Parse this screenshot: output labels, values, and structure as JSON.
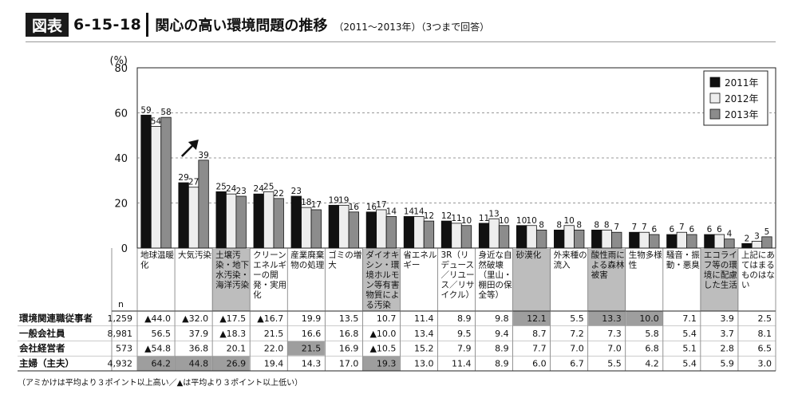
{
  "header": {
    "badge": "図表",
    "number": "6-15-18",
    "title": "関心の高い環境問題の推移",
    "subtitle": "（2011～2013年）（3つまで回答）"
  },
  "chart_data": {
    "type": "bar",
    "title": "関心の高い環境問題の推移",
    "ylabel": "(%)",
    "ylim": [
      0,
      80
    ],
    "yticks": [
      0,
      20,
      40,
      60,
      80
    ],
    "grid": "dashed-horizontal",
    "legend_position": "top-right",
    "categories": [
      [
        "地球温暖",
        "化"
      ],
      [
        "大気汚染"
      ],
      [
        "土壌汚",
        "染・地下",
        "水汚染・",
        "海洋汚染"
      ],
      [
        "クリーン",
        "エネルギ",
        "ーの開",
        "発・実用",
        "化"
      ],
      [
        "産業廃棄",
        "物の処理"
      ],
      [
        "ゴミの増",
        "大"
      ],
      [
        "ダイオキ",
        "シン・環",
        "境ホルモ",
        "ン等有害",
        "物質によ",
        "る汚染"
      ],
      [
        "省エネル",
        "ギー"
      ],
      [
        "3R（リ",
        "デュース",
        "／リユー",
        "ス／リサ",
        "イクル）"
      ],
      [
        "身近な自",
        "然破壊",
        "（里山・",
        "棚田の保",
        "全等）"
      ],
      [
        "砂漠化"
      ],
      [
        "外来種の",
        "流入"
      ],
      [
        "酸性雨に",
        "よる森林",
        "被害"
      ],
      [
        "生物多様",
        "性"
      ],
      [
        "騒音・振",
        "動・悪臭"
      ],
      [
        "エコライ",
        "フ等の環",
        "境に配慮",
        "した生活"
      ],
      [
        "上記にあ",
        "てはまる",
        "ものはな",
        "い"
      ]
    ],
    "shaded_categories": [
      2,
      6,
      10,
      12,
      15
    ],
    "series": [
      {
        "name": "2011年",
        "color": "#111111",
        "values": [
          59,
          29,
          25,
          24,
          23,
          19,
          16,
          14,
          12,
          11,
          10,
          8,
          8,
          7,
          6,
          6,
          2
        ]
      },
      {
        "name": "2012年",
        "color": "#eeeeee",
        "values": [
          54,
          27,
          24,
          25,
          18,
          19,
          17,
          14,
          11,
          13,
          10,
          10,
          8,
          7,
          7,
          6,
          3
        ]
      },
      {
        "name": "2013年",
        "color": "#8c8c8c",
        "values": [
          58,
          39,
          23,
          22,
          17,
          16,
          14,
          12,
          10,
          10,
          8,
          8,
          7,
          6,
          6,
          4,
          5
        ]
      }
    ],
    "annotations": [
      {
        "type": "arrow-up",
        "category": 1
      }
    ],
    "table": {
      "n_header": "n",
      "rows": [
        {
          "label": "環境関連職従事者",
          "n": "1,259",
          "cells": [
            "▲44.0",
            "▲32.0",
            "▲17.5",
            "▲16.7",
            "19.9",
            "13.5",
            "10.7",
            "11.4",
            "8.9",
            "9.8",
            "12.1",
            "5.5",
            "13.3",
            "10.0",
            "7.1",
            "3.9",
            "2.5"
          ],
          "shaded": [
            10,
            12,
            13
          ]
        },
        {
          "label": "一般会社員",
          "n": "8,981",
          "cells": [
            "56.5",
            "37.9",
            "▲18.3",
            "21.5",
            "16.6",
            "16.8",
            "▲10.0",
            "13.4",
            "9.5",
            "9.4",
            "8.7",
            "7.2",
            "7.3",
            "5.8",
            "5.4",
            "3.7",
            "8.1"
          ],
          "shaded": []
        },
        {
          "label": "会社経営者",
          "n": "573",
          "cells": [
            "▲54.8",
            "36.8",
            "20.1",
            "22.0",
            "21.5",
            "16.9",
            "▲10.5",
            "15.2",
            "7.9",
            "8.9",
            "7.7",
            "7.0",
            "7.0",
            "6.8",
            "5.1",
            "2.8",
            "6.5"
          ],
          "shaded": [
            4
          ]
        },
        {
          "label": "主婦（主夫）",
          "n": "4,932",
          "cells": [
            "64.2",
            "44.8",
            "26.9",
            "19.4",
            "14.3",
            "17.0",
            "19.3",
            "13.0",
            "11.4",
            "8.9",
            "6.0",
            "6.7",
            "5.5",
            "4.2",
            "5.4",
            "5.9",
            "3.0"
          ],
          "shaded": [
            0,
            1,
            2,
            6
          ]
        }
      ]
    }
  },
  "footnote": "（アミかけは平均より３ポイント以上高い／▲は平均より３ポイント以上低い）"
}
